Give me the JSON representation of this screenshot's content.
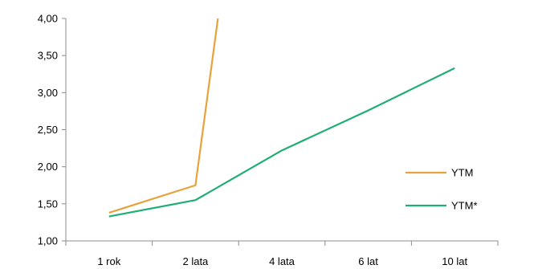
{
  "chart_data": {
    "type": "line",
    "categories": [
      "1 rok",
      "2 lata",
      "4 lata",
      "6 lat",
      "10 lat"
    ],
    "ylim": [
      1.0,
      4.0
    ],
    "y_ticks": [
      "1,00",
      "1,50",
      "2,00",
      "2,50",
      "3,00",
      "3,50",
      "4,00"
    ],
    "grid": false,
    "legend_position": "right",
    "series": [
      {
        "name": "YTM",
        "color": "#E8A23A",
        "points": [
          {
            "x": "1 rok",
            "y": 1.38
          },
          {
            "x": "2 lata",
            "y": 1.75
          },
          {
            "x": "between 2 lata and 4 lata",
            "y": 4.0
          }
        ],
        "note": "line exceeds the y-axis maximum shortly after 2 lata and is clipped at 4,00"
      },
      {
        "name": "YTM*",
        "color": "#1FAE74",
        "values": [
          1.33,
          1.55,
          2.22,
          2.76,
          3.33
        ]
      }
    ]
  }
}
